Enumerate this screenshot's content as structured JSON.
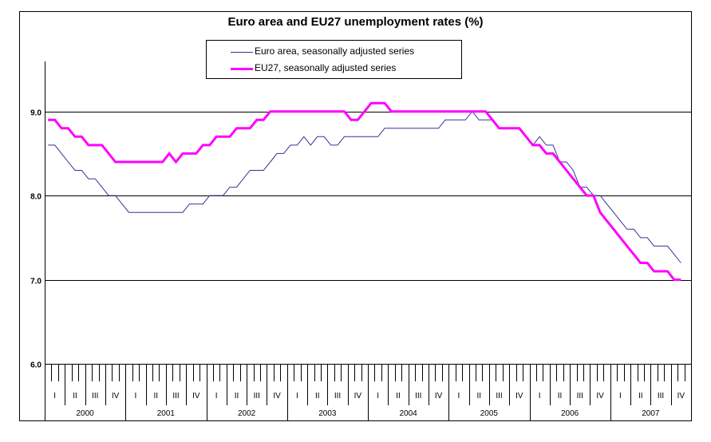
{
  "chart_data": {
    "type": "line",
    "title": "Euro area and EU27 unemployment rates (%)",
    "xlabel": "",
    "ylabel": "",
    "ylim": [
      6.0,
      9.5
    ],
    "yticks": [
      "6.0",
      "7.0",
      "8.0",
      "9.0"
    ],
    "grid": "horizontal",
    "legend_position": "top-center",
    "quarters": [
      "I",
      "II",
      "III",
      "IV"
    ],
    "years": [
      "2000",
      "2001",
      "2002",
      "2003",
      "2004",
      "2005",
      "2006",
      "2007"
    ],
    "series": [
      {
        "name": "Euro area, seasonally adjusted series",
        "color": "#333399",
        "values": [
          8.6,
          8.6,
          8.5,
          8.4,
          8.3,
          8.3,
          8.2,
          8.2,
          8.1,
          8.0,
          8.0,
          7.9,
          7.8,
          7.8,
          7.8,
          7.8,
          7.8,
          7.8,
          7.8,
          7.8,
          7.8,
          7.9,
          7.9,
          7.9,
          8.0,
          8.0,
          8.0,
          8.1,
          8.1,
          8.2,
          8.3,
          8.3,
          8.3,
          8.4,
          8.5,
          8.5,
          8.6,
          8.6,
          8.7,
          8.6,
          8.7,
          8.7,
          8.6,
          8.6,
          8.7,
          8.7,
          8.7,
          8.7,
          8.7,
          8.7,
          8.8,
          8.8,
          8.8,
          8.8,
          8.8,
          8.8,
          8.8,
          8.8,
          8.8,
          8.9,
          8.9,
          8.9,
          8.9,
          9.0,
          8.9,
          8.9,
          8.9,
          8.8,
          8.8,
          8.8,
          8.8,
          8.7,
          8.6,
          8.7,
          8.6,
          8.6,
          8.4,
          8.4,
          8.3,
          8.1,
          8.1,
          8.0,
          8.0,
          7.9,
          7.8,
          7.7,
          7.6,
          7.6,
          7.5,
          7.5,
          7.4,
          7.4,
          7.4,
          7.3,
          7.2
        ]
      },
      {
        "name": "EU27, seasonally adjusted series",
        "color": "#ff00ff",
        "values": [
          8.9,
          8.9,
          8.8,
          8.8,
          8.7,
          8.7,
          8.6,
          8.6,
          8.6,
          8.5,
          8.4,
          8.4,
          8.4,
          8.4,
          8.4,
          8.4,
          8.4,
          8.4,
          8.5,
          8.4,
          8.5,
          8.5,
          8.5,
          8.6,
          8.6,
          8.7,
          8.7,
          8.7,
          8.8,
          8.8,
          8.8,
          8.9,
          8.9,
          9.0,
          9.0,
          9.0,
          9.0,
          9.0,
          9.0,
          9.0,
          9.0,
          9.0,
          9.0,
          9.0,
          9.0,
          8.9,
          8.9,
          9.0,
          9.1,
          9.1,
          9.1,
          9.0,
          9.0,
          9.0,
          9.0,
          9.0,
          9.0,
          9.0,
          9.0,
          9.0,
          9.0,
          9.0,
          9.0,
          9.0,
          9.0,
          9.0,
          8.9,
          8.8,
          8.8,
          8.8,
          8.8,
          8.7,
          8.6,
          8.6,
          8.5,
          8.5,
          8.4,
          8.3,
          8.2,
          8.1,
          8.0,
          8.0,
          7.8,
          7.7,
          7.6,
          7.5,
          7.4,
          7.3,
          7.2,
          7.2,
          7.1,
          7.1,
          7.1,
          7.0,
          7.0
        ]
      }
    ]
  }
}
